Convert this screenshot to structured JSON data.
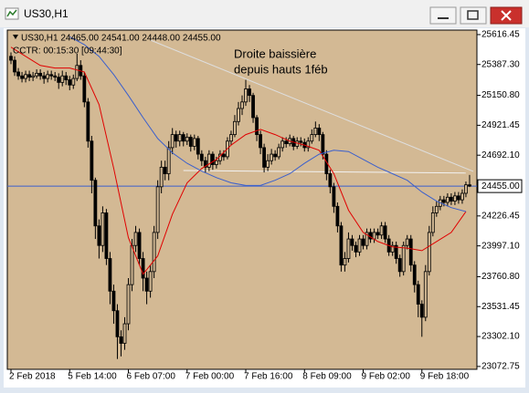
{
  "window_title": "US30,H1",
  "chart_data": {
    "type": "candlestick",
    "info_line": "US30,H1  24465.00 24541.00 24448.00 24455.00",
    "timer_line": "CCTR: 00:15:30 [09:44:30]",
    "annotation": [
      "Droite baissière",
      "depuis hauts 1féb"
    ],
    "background": "#d3b994",
    "ylim": [
      23051,
      25651
    ],
    "yticks": [
      {
        "value": 25616.45,
        "label": "25616.45"
      },
      {
        "value": 25387.3,
        "label": "25387.30"
      },
      {
        "value": 25150.8,
        "label": "25150.80"
      },
      {
        "value": 24921.45,
        "label": "24921.45"
      },
      {
        "value": 24692.1,
        "label": "24692.10"
      },
      {
        "value": 24226.45,
        "label": "24226.45"
      },
      {
        "value": 23997.1,
        "label": "23997.10"
      },
      {
        "value": 23760.8,
        "label": "23760.80"
      },
      {
        "value": 23531.45,
        "label": "23531.45"
      },
      {
        "value": 23302.1,
        "label": "23302.10"
      },
      {
        "value": 23072.75,
        "label": "23072.75"
      }
    ],
    "xlim": [
      -1,
      127
    ],
    "xticks": [
      {
        "value": 0,
        "label": "2 Feb 2018"
      },
      {
        "value": 16,
        "label": "5 Feb 14:00"
      },
      {
        "value": 32,
        "label": "6 Feb 07:00"
      },
      {
        "value": 48,
        "label": "7 Feb 00:00"
      },
      {
        "value": 64,
        "label": "7 Feb 16:00"
      },
      {
        "value": 80,
        "label": "8 Feb 09:00"
      },
      {
        "value": 96,
        "label": "9 Feb 02:00"
      },
      {
        "value": 112,
        "label": "9 Feb 18:00"
      }
    ],
    "price_line": {
      "value": 24455,
      "label": "24455.00",
      "color": "#3a5fcd"
    },
    "candles": {
      "color": "#000000",
      "open": [
        25450,
        25420,
        25330,
        25300,
        25280,
        25310,
        25290,
        25300,
        25320,
        25300,
        25280,
        25310,
        25300,
        25290,
        25250,
        25300,
        25270,
        25230,
        25280,
        25380,
        25300,
        25100,
        24800,
        24500,
        24150,
        24000,
        24250,
        23900,
        23650,
        23500,
        23300,
        23250,
        23400,
        23700,
        24000,
        24100,
        23900,
        23750,
        23650,
        23800,
        24100,
        24450,
        24600,
        24550,
        24750,
        24850,
        24800,
        24850,
        24800,
        24830,
        24760,
        24820,
        24700,
        24650,
        24600,
        24700,
        24620,
        24650,
        24700,
        24680,
        24800,
        24850,
        24950,
        25050,
        25100,
        25200,
        25150,
        24980,
        24850,
        24750,
        24600,
        24650,
        24700,
        24680,
        24750,
        24800,
        24780,
        24820,
        24760,
        24800,
        24790,
        24750,
        24800,
        24850,
        24900,
        24850,
        24700,
        24550,
        24450,
        24300,
        24150,
        23850,
        23900,
        24050,
        24000,
        23950,
        24050,
        24000,
        24100,
        24050,
        24100,
        24080,
        24150,
        24050,
        23950,
        24000,
        23900,
        23800,
        24000,
        24050,
        23850,
        23700,
        23550,
        23450,
        23800,
        24100,
        24250,
        24300,
        24350,
        24330,
        24370,
        24340,
        24380,
        24350,
        24400,
        24465
      ],
      "high": [
        25480,
        25450,
        25360,
        25330,
        25340,
        25340,
        25330,
        25350,
        25350,
        25330,
        25340,
        25340,
        25330,
        25320,
        25340,
        25330,
        25300,
        25310,
        25470,
        25420,
        25330,
        25130,
        24840,
        24520,
        24200,
        24300,
        24280,
        23950,
        23700,
        23550,
        23350,
        23450,
        23750,
        24050,
        24150,
        24130,
        23950,
        23800,
        23850,
        24150,
        24500,
        24650,
        24650,
        24800,
        24900,
        24880,
        24880,
        24870,
        24860,
        24850,
        24850,
        24840,
        24730,
        24680,
        24730,
        24720,
        24680,
        24730,
        24730,
        24830,
        24880,
        25000,
        25100,
        25150,
        25270,
        25230,
        25170,
        25000,
        24880,
        24780,
        24700,
        24740,
        24730,
        24780,
        24830,
        24830,
        24850,
        24840,
        24830,
        24830,
        24820,
        24830,
        24890,
        24950,
        24930,
        24870,
        24730,
        24580,
        24480,
        24330,
        24180,
        23950,
        24100,
        24080,
        24030,
        24080,
        24080,
        24130,
        24130,
        24130,
        24130,
        24180,
        24180,
        24080,
        24030,
        24030,
        23930,
        24030,
        24080,
        24080,
        23880,
        23730,
        23580,
        23850,
        24150,
        24300,
        24340,
        24380,
        24380,
        24400,
        24400,
        24410,
        24410,
        24430,
        24490,
        24541
      ],
      "low": [
        25390,
        25300,
        25270,
        25250,
        25250,
        25260,
        25260,
        25280,
        25270,
        25240,
        25250,
        25270,
        25260,
        25200,
        25220,
        25230,
        25190,
        25200,
        25260,
        25270,
        25060,
        24750,
        24400,
        24050,
        23900,
        23950,
        23850,
        23550,
        23400,
        23130,
        23150,
        23200,
        23350,
        23650,
        23950,
        23850,
        23650,
        23550,
        23600,
        23750,
        24050,
        24400,
        24500,
        24500,
        24700,
        24750,
        24760,
        24760,
        24770,
        24720,
        24730,
        24660,
        24610,
        24560,
        24570,
        24580,
        24590,
        24620,
        24650,
        24660,
        24770,
        24830,
        24920,
        25000,
        25070,
        25100,
        24940,
        24800,
        24700,
        24560,
        24570,
        24620,
        24650,
        24660,
        24720,
        24750,
        24760,
        24730,
        24740,
        24760,
        24720,
        24720,
        24780,
        24830,
        24800,
        24660,
        24500,
        24400,
        24250,
        24100,
        23800,
        23800,
        23870,
        23960,
        23910,
        23920,
        23970,
        23970,
        24020,
        24020,
        24050,
        24050,
        24020,
        23920,
        23920,
        23860,
        23760,
        23770,
        23970,
        23800,
        23640,
        23450,
        23300,
        23420,
        23770,
        24070,
        24220,
        24270,
        24300,
        24300,
        24310,
        24310,
        24320,
        24320,
        24370,
        24448
      ],
      "close": [
        25420,
        25330,
        25300,
        25280,
        25310,
        25290,
        25300,
        25320,
        25300,
        25280,
        25310,
        25300,
        25290,
        25250,
        25300,
        25270,
        25230,
        25280,
        25380,
        25300,
        25100,
        24800,
        24500,
        24150,
        24000,
        24250,
        23900,
        23650,
        23500,
        23300,
        23250,
        23400,
        23700,
        24000,
        24100,
        23900,
        23750,
        23650,
        23800,
        24100,
        24450,
        24600,
        24550,
        24750,
        24850,
        24800,
        24850,
        24800,
        24830,
        24760,
        24820,
        24700,
        24650,
        24600,
        24700,
        24620,
        24650,
        24700,
        24680,
        24800,
        24850,
        24950,
        25050,
        25100,
        25200,
        25150,
        24980,
        24850,
        24750,
        24600,
        24650,
        24700,
        24680,
        24750,
        24800,
        24780,
        24820,
        24760,
        24800,
        24790,
        24750,
        24800,
        24850,
        24900,
        24850,
        24700,
        24550,
        24450,
        24300,
        24150,
        23850,
        23900,
        24050,
        24000,
        23950,
        24050,
        24000,
        24100,
        24050,
        24100,
        24080,
        24150,
        24050,
        23950,
        24000,
        23900,
        23800,
        24000,
        24050,
        23850,
        23700,
        23550,
        23450,
        23800,
        24100,
        24250,
        24300,
        24350,
        24330,
        24370,
        24340,
        24380,
        24350,
        24400,
        24465,
        24455
      ]
    },
    "series": [
      {
        "color": "#e00000",
        "x": [
          0,
          4,
          8,
          12,
          16,
          20,
          24,
          28,
          32,
          36,
          40,
          44,
          48,
          52,
          56,
          60,
          64,
          68,
          72,
          76,
          80,
          84,
          88,
          92,
          96,
          100,
          104,
          108,
          112,
          116,
          120,
          124
        ],
        "values": [
          25520,
          25450,
          25380,
          25360,
          25360,
          25330,
          25080,
          24590,
          24060,
          23780,
          23920,
          24240,
          24480,
          24590,
          24660,
          24770,
          24850,
          24890,
          24850,
          24800,
          24770,
          24730,
          24550,
          24270,
          24100,
          24030,
          23990,
          23980,
          23960,
          24030,
          24100,
          24260
        ]
      },
      {
        "color": "#3a5fcd",
        "x": [
          16,
          20,
          24,
          28,
          32,
          36,
          40,
          44,
          48,
          52,
          56,
          60,
          64,
          68,
          72,
          76,
          80,
          84,
          88,
          92,
          96,
          100,
          104,
          108,
          112,
          116,
          120,
          124
        ],
        "values": [
          25600,
          25540,
          25450,
          25310,
          25150,
          24980,
          24820,
          24710,
          24630,
          24570,
          24520,
          24480,
          24460,
          24460,
          24500,
          24550,
          24630,
          24700,
          24730,
          24720,
          24660,
          24600,
          24550,
          24500,
          24410,
          24340,
          24290,
          24260
        ]
      }
    ],
    "trendlines": [
      {
        "color": "#dedede",
        "x": [
          38,
          126
        ],
        "y": [
          25574,
          24568
        ]
      },
      {
        "color": "#f2f2f2",
        "x": [
          47,
          124
        ],
        "y": [
          24575,
          24555
        ]
      }
    ]
  }
}
